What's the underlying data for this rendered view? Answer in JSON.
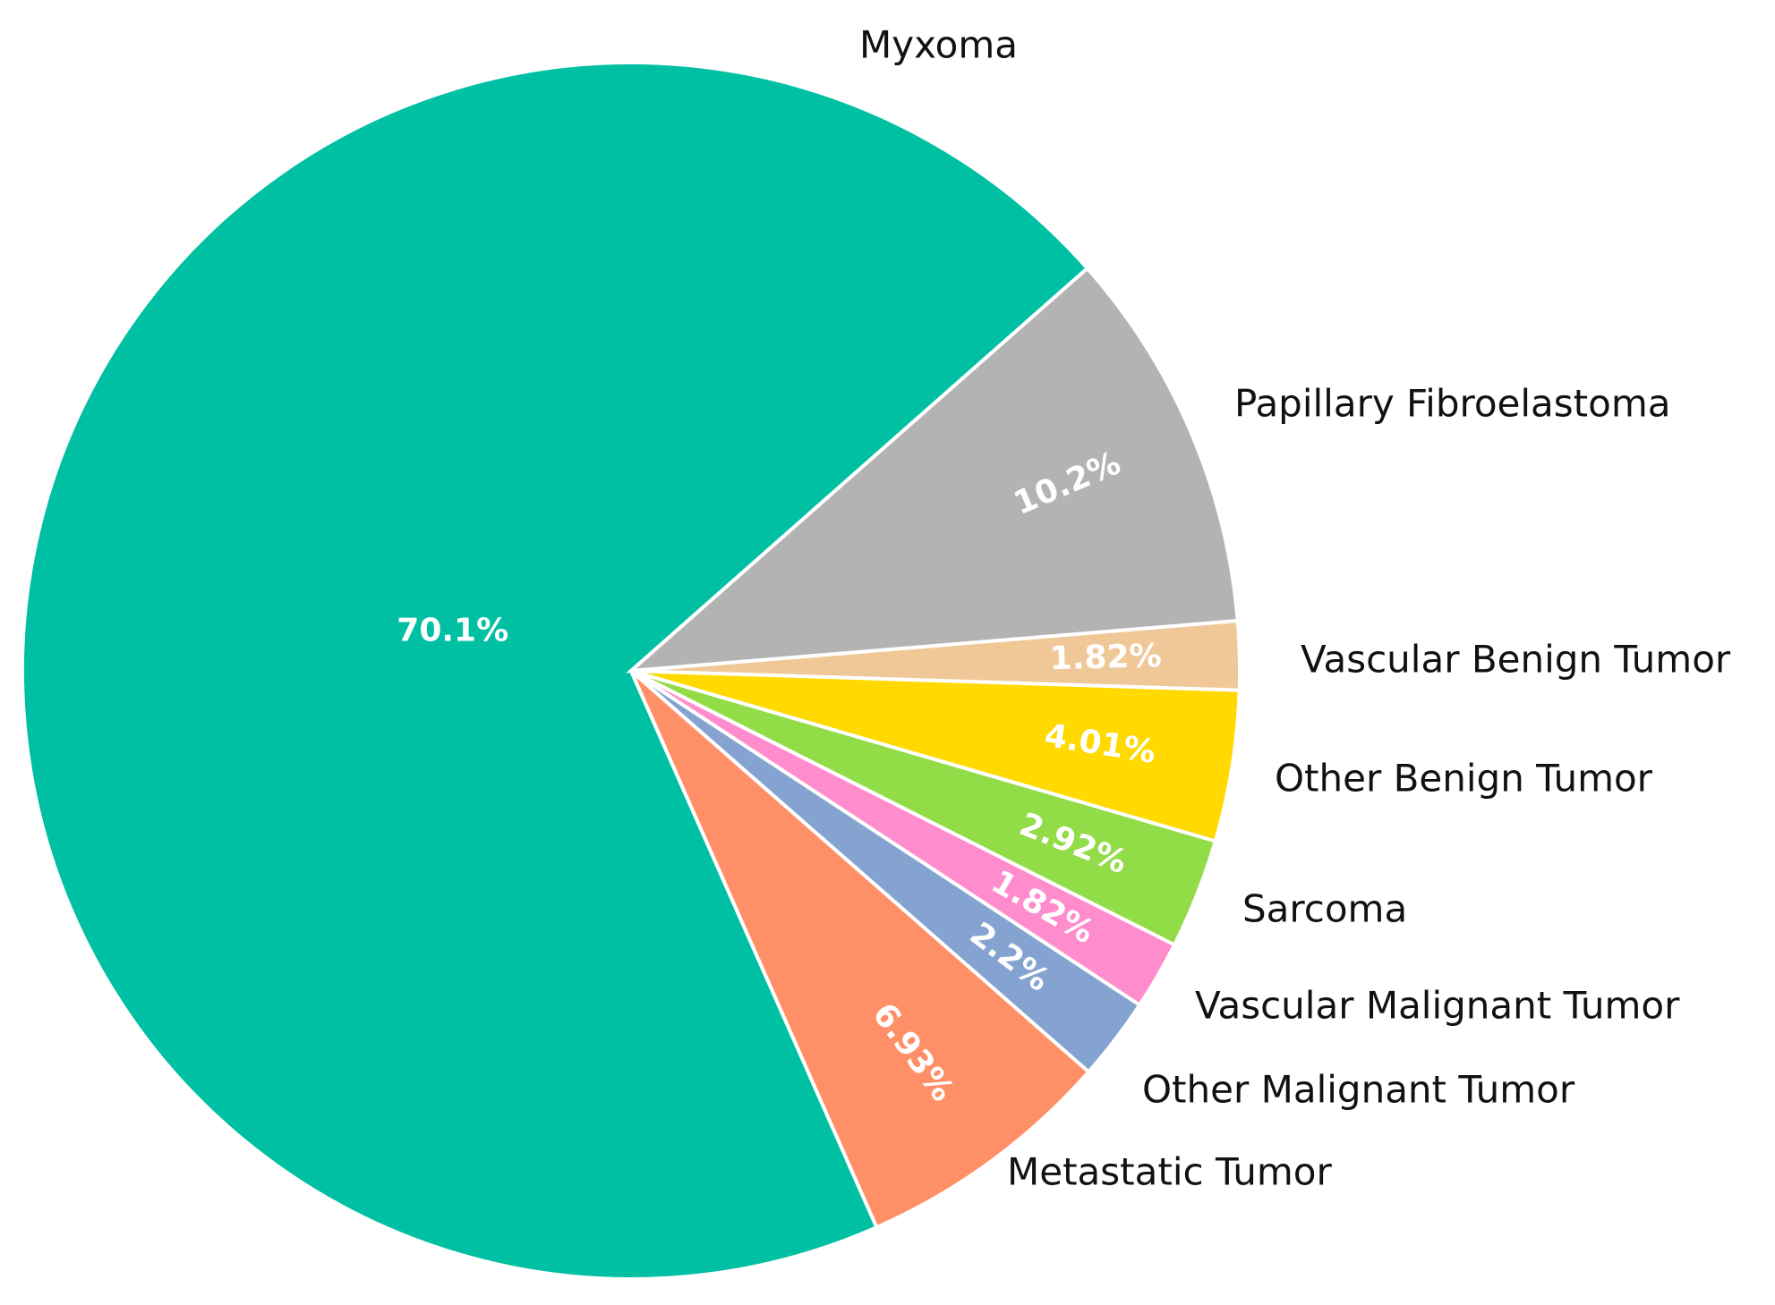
{
  "chart_data": {
    "type": "pie",
    "categories": [
      "Myxoma",
      "Papillary Fibroelastoma",
      "Vascular Benign Tumor",
      "Other Benign Tumor",
      "Sarcoma",
      "Vascular Malignant Tumor",
      "Other Malignant Tumor",
      "Metastatic Tumor"
    ],
    "values": [
      70.1,
      10.2,
      1.82,
      4.01,
      2.92,
      1.82,
      2.2,
      6.93
    ],
    "value_labels": [
      "70.1%",
      "10.2%",
      "1.82%",
      "4.01%",
      "2.92%",
      "1.82%",
      "2.2%",
      "6.93%"
    ],
    "colors": [
      "#00c0a3",
      "#b3b3b3",
      "#f0c898",
      "#ffd900",
      "#91dc47",
      "#ff8ccc",
      "#85a3d0",
      "#ff8f66"
    ]
  }
}
